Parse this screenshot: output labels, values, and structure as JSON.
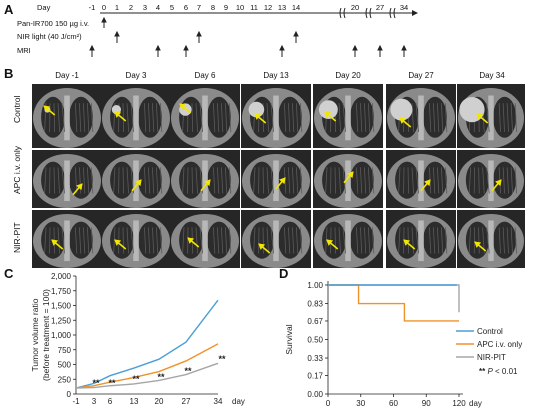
{
  "panels": {
    "a": "A",
    "b": "B",
    "c": "C",
    "d": "D"
  },
  "timeline": {
    "day_label": "Day",
    "days": [
      "-1",
      "0",
      "1",
      "2",
      "3",
      "4",
      "5",
      "6",
      "7",
      "8",
      "9",
      "10",
      "11",
      "12",
      "13",
      "14",
      "20",
      "27",
      "34"
    ],
    "rows": [
      {
        "label": "Pan-IR700 150 µg i.v."
      },
      {
        "label": "NIR light (40 J/cm²)"
      },
      {
        "label": "MRI"
      }
    ]
  },
  "mri_grid": {
    "days": [
      "Day -1",
      "Day 3",
      "Day 6",
      "Day 13",
      "Day 20",
      "Day 27",
      "Day 34"
    ],
    "rows": [
      "Control",
      "APC i.v. only",
      "NIR-PIT"
    ]
  },
  "chart_data": [
    {
      "type": "line",
      "ylabel": "Tumor volume ratio\n(before treatment = 100)",
      "xlabel": "day",
      "x": [
        -1,
        3,
        6,
        13,
        20,
        27,
        34
      ],
      "x_ticks": [
        "-1",
        "3",
        "6",
        "13",
        "20",
        "27",
        "34"
      ],
      "y_ticks": [
        "0",
        "250",
        "500",
        "750",
        "1,000",
        "1,250",
        "1,500",
        "1,750",
        "2,000"
      ],
      "ylim": [
        0,
        2000
      ],
      "series": [
        {
          "name": "Control",
          "color": "#4a9fd8",
          "values": [
            100,
            180,
            310,
            440,
            590,
            880,
            1590
          ]
        },
        {
          "name": "APC i.v. only",
          "color": "#f0922b",
          "values": [
            100,
            140,
            200,
            280,
            380,
            560,
            850
          ]
        },
        {
          "name": "NIR-PIT",
          "color": "#a6a6a6",
          "values": [
            100,
            110,
            140,
            170,
            230,
            330,
            520
          ]
        }
      ],
      "significance": [
        "**",
        "**",
        "**",
        "**",
        "**",
        "**"
      ]
    },
    {
      "type": "line",
      "ylabel": "Survival",
      "xlabel": "day",
      "x_ticks": [
        "0",
        "30",
        "60",
        "90",
        "120"
      ],
      "y_ticks": [
        "0.00",
        "0.17",
        "0.33",
        "0.50",
        "0.67",
        "0.83",
        "1.00"
      ],
      "xlim": [
        0,
        120
      ],
      "ylim": [
        0,
        1
      ],
      "series": [
        {
          "name": "Control",
          "color": "#4a9fd8",
          "steps": [
            [
              0,
              1.0
            ],
            [
              118,
              1.0
            ]
          ]
        },
        {
          "name": "APC i.v. only",
          "color": "#f0922b",
          "steps": [
            [
              0,
              1.0
            ],
            [
              28,
              1.0
            ],
            [
              28,
              0.83
            ],
            [
              70,
              0.83
            ],
            [
              70,
              0.67
            ],
            [
              120,
              0.67
            ]
          ]
        },
        {
          "name": "NIR-PIT",
          "color": "#a6a6a6",
          "steps": [
            [
              0,
              1.0
            ],
            [
              120,
              1.0
            ],
            [
              120,
              0.75
            ]
          ]
        }
      ],
      "legend": [
        {
          "label": "Control",
          "color": "#4a9fd8"
        },
        {
          "label": "APC i.v. only",
          "color": "#f0922b"
        },
        {
          "label": "NIR-PIT",
          "color": "#a6a6a6"
        }
      ],
      "significance_note_stars": "**",
      "significance_note_p": "P",
      "significance_note_rest": " < 0.01"
    }
  ]
}
